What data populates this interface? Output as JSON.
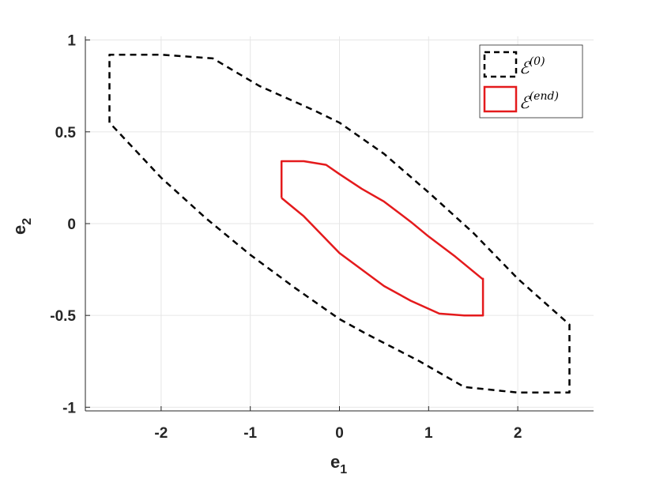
{
  "chart_data": {
    "type": "line",
    "title": "",
    "xlabel": "e",
    "xlabel_sub": "1",
    "ylabel": "e",
    "ylabel_sub": "2",
    "xlim": [
      -2.85,
      2.85
    ],
    "ylim": [
      -1.02,
      1.02
    ],
    "xticks": [
      -2,
      -1,
      0,
      1,
      2
    ],
    "xtick_labels": [
      "-2",
      "-1",
      "0",
      "1",
      "2"
    ],
    "yticks": [
      -1,
      -0.5,
      0,
      0.5,
      1
    ],
    "ytick_labels": [
      "-1",
      "-0.5",
      "0",
      "0.5",
      "1"
    ],
    "grid": true,
    "legend_position": "top-right",
    "series": [
      {
        "name": "ℰ",
        "name_sup": "(0)",
        "color": "#000000",
        "style": "dashed",
        "x": [
          -2.58,
          -2.58,
          -2.0,
          -1.42,
          -0.9,
          -0.3,
          0.0,
          0.5,
          1.0,
          1.5,
          2.0,
          2.58,
          2.58,
          2.0,
          1.4,
          0.9,
          0.3,
          0.0,
          -0.5,
          -1.0,
          -1.5,
          -2.0,
          -2.58
        ],
        "y": [
          0.55,
          0.92,
          0.92,
          0.9,
          0.75,
          0.62,
          0.55,
          0.38,
          0.17,
          -0.05,
          -0.3,
          -0.55,
          -0.92,
          -0.92,
          -0.89,
          -0.75,
          -0.6,
          -0.52,
          -0.35,
          -0.17,
          0.03,
          0.25,
          0.55
        ]
      },
      {
        "name": "ℰ",
        "name_sup": "(end)",
        "color": "#e41a1c",
        "style": "solid",
        "x": [
          -0.65,
          -0.65,
          -0.4,
          -0.15,
          0.0,
          0.25,
          0.5,
          0.8,
          1.0,
          1.3,
          1.6,
          1.61,
          1.61,
          1.4,
          1.12,
          0.8,
          0.5,
          0.0,
          -0.4,
          -0.6,
          -0.65
        ],
        "y": [
          0.14,
          0.34,
          0.34,
          0.32,
          0.27,
          0.19,
          0.12,
          0.01,
          -0.07,
          -0.18,
          -0.3,
          -0.3,
          -0.5,
          -0.5,
          -0.49,
          -0.42,
          -0.34,
          -0.16,
          0.04,
          0.12,
          0.14
        ]
      }
    ]
  }
}
